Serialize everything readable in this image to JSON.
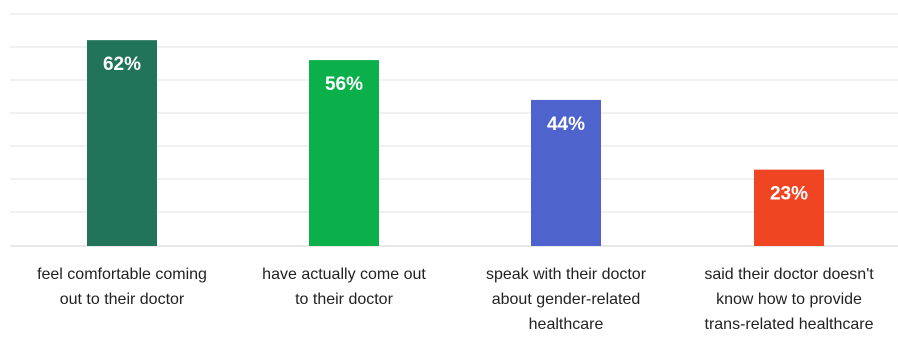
{
  "chart_data": {
    "type": "bar",
    "categories": [
      [
        "feel comfortable coming",
        "out to their doctor"
      ],
      [
        "have actually come out",
        "to their doctor"
      ],
      [
        "speak with their doctor",
        "about gender-related",
        "healthcare"
      ],
      [
        "said their doctor doesn't",
        "know how to provide",
        "trans-related healthcare"
      ]
    ],
    "values": [
      62,
      56,
      44,
      23
    ],
    "value_labels": [
      "62%",
      "56%",
      "44%",
      "23%"
    ],
    "colors": [
      "#217359",
      "#0bb04b",
      "#4e63cc",
      "#f04523"
    ],
    "ylim": [
      0,
      66
    ],
    "grid": true,
    "title": "",
    "xlabel": "",
    "ylabel": ""
  }
}
